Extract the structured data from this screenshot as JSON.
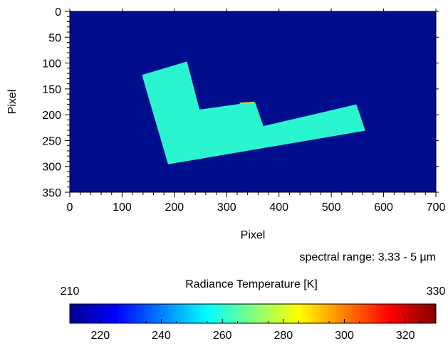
{
  "chart_data": {
    "type": "heatmap",
    "xlabel": "Pixel",
    "ylabel": "Pixel",
    "xlim": [
      0,
      700
    ],
    "ylim": [
      350,
      0
    ],
    "xticks": [
      0,
      100,
      200,
      300,
      400,
      500,
      600,
      700
    ],
    "yticks": [
      0,
      50,
      100,
      150,
      200,
      250,
      300,
      350
    ],
    "annotation": "spectral range: 3.33 - 5 µm",
    "background_value": 210,
    "object_value": 258,
    "object_outline": [
      [
        138,
        123
      ],
      [
        224,
        97
      ],
      [
        248,
        190
      ],
      [
        354,
        175
      ],
      [
        370,
        222
      ],
      [
        548,
        180
      ],
      [
        565,
        231
      ],
      [
        188,
        296
      ]
    ],
    "hot_edge": {
      "from": [
        325,
        178
      ],
      "to": [
        352,
        176
      ],
      "value": 290
    },
    "colorbar": {
      "title": "Radiance Temperature [K]",
      "min": 210,
      "max": 330,
      "min_label": "210",
      "max_label": "330",
      "ticks": [
        220,
        240,
        260,
        280,
        300,
        320
      ],
      "colormap": [
        "#00008f",
        "#0000ff",
        "#0080ff",
        "#00ffff",
        "#80ff80",
        "#ffff00",
        "#ff8000",
        "#ff0000",
        "#800000"
      ]
    },
    "colors": {
      "background": "#000e8e",
      "object": "#2af5cf",
      "hot_edge": "#e0c42a"
    }
  }
}
